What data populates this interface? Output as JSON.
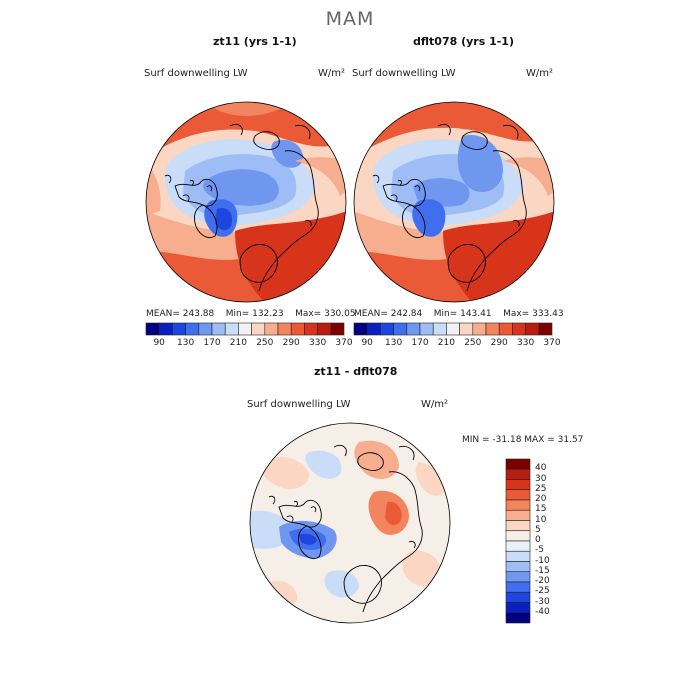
{
  "title": "MAM",
  "panels": [
    {
      "title": "zt11 (yrs 1-1)",
      "variable": "Surf downwelling LW",
      "units": "W/m²",
      "stats": {
        "mean": "243.88",
        "min": "132.23",
        "max": "330.05"
      },
      "labels": {
        "mean": "MEAN=",
        "min": "Min=",
        "max": "Max="
      }
    },
    {
      "title": "dflt078 (yrs 1-1)",
      "variable": "Surf downwelling LW",
      "units": "W/m²",
      "stats": {
        "mean": "242.84",
        "min": "143.41",
        "max": "333.43"
      },
      "labels": {
        "mean": "MEAN=",
        "min": "Min=",
        "max": "Max="
      }
    }
  ],
  "diff_panel": {
    "title": "zt11 - dflt078",
    "variable": "Surf downwelling LW",
    "units": "W/m²",
    "stats_text": "MIN = -31.18  MAX =  31.57"
  },
  "colorbar_top": {
    "ticks": [
      "90",
      "130",
      "170",
      "210",
      "250",
      "290",
      "330",
      "370"
    ],
    "colors": [
      "#000080",
      "#0a1fbf",
      "#1f45e0",
      "#3f6fee",
      "#6f97f0",
      "#9ebcf5",
      "#c9dcf8",
      "#f2f2f0",
      "#fbd6c2",
      "#f7ae8e",
      "#f2845e",
      "#ea5a36",
      "#d8341c",
      "#b81e10",
      "#7a0000"
    ]
  },
  "colorbar_diff": {
    "ticks": [
      "40",
      "30",
      "25",
      "20",
      "15",
      "10",
      "5",
      "0",
      "-5",
      "-10",
      "-15",
      "-20",
      "-25",
      "-30",
      "-40"
    ],
    "colors": [
      "#7a0000",
      "#b81e10",
      "#d8341c",
      "#ea5a36",
      "#f2845e",
      "#f7ae8e",
      "#fbd6c2",
      "#f6efe8",
      "#e8f0fa",
      "#c9dcf8",
      "#9ebcf5",
      "#6f97f0",
      "#3f6fee",
      "#1f45e0",
      "#0a1fbf",
      "#000080"
    ]
  }
}
